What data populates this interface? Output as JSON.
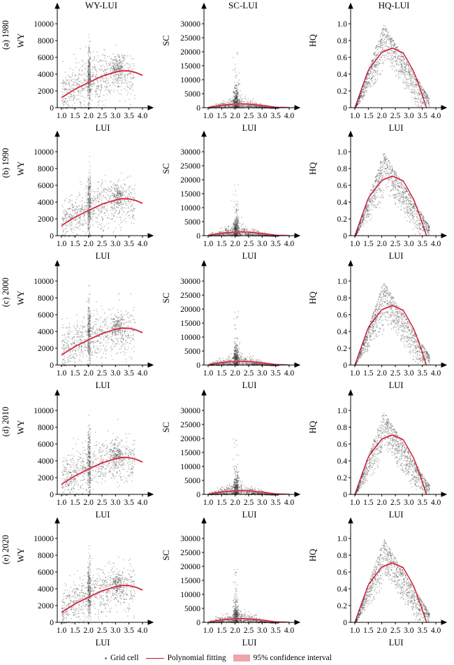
{
  "column_titles": [
    "WY-LUI",
    "SC-LUI",
    "HQ-LUI"
  ],
  "row_labels": [
    "(a) 1980",
    "(b) 1990",
    "(c) 2000",
    "(d) 2010",
    "(e) 2020"
  ],
  "legend": {
    "points": "Grid cell",
    "fit": "Polynomial fitting",
    "band": "95% confidence interval"
  },
  "colors": {
    "points": "#3a3a3a",
    "fit": "#c8102e",
    "band": "#f0a4ac",
    "axis": "#000000"
  },
  "chart_data": [
    {
      "type": "scatter",
      "panel": "WY-LUI",
      "xlabel": "LUI",
      "ylabel": "WY",
      "xlim": [
        1.0,
        4.0
      ],
      "ylim": [
        0,
        10000
      ],
      "xticks": [
        "1.0",
        "1.5",
        "2.0",
        "2.5",
        "3.0",
        "3.5",
        "4.0"
      ],
      "yticks": [
        "0",
        "2000",
        "4000",
        "6000",
        "8000",
        "10000"
      ],
      "fit": {
        "x": [
          1.0,
          1.5,
          2.0,
          2.5,
          3.0,
          3.25,
          3.5,
          3.75,
          4.0
        ],
        "y": [
          1200,
          2200,
          3000,
          3750,
          4250,
          4400,
          4380,
          4200,
          3850
        ]
      }
    },
    {
      "type": "scatter",
      "panel": "SC-LUI",
      "xlabel": "LUI",
      "ylabel": "SC",
      "xlim": [
        1.0,
        4.0
      ],
      "ylim": [
        0,
        30000
      ],
      "xticks": [
        "1.0",
        "1.5",
        "2.0",
        "2.5",
        "3.0",
        "3.5",
        "4.0"
      ],
      "yticks": [
        "0",
        "5000",
        "10000",
        "15000",
        "20000",
        "25000",
        "30000"
      ],
      "fit": {
        "x": [
          1.0,
          1.5,
          2.0,
          2.25,
          2.5,
          3.0,
          3.5,
          4.0
        ],
        "y": [
          0,
          900,
          1300,
          1350,
          1250,
          800,
          150,
          0
        ]
      }
    },
    {
      "type": "scatter",
      "panel": "HQ-LUI",
      "xlabel": "LUI",
      "ylabel": "HQ",
      "xlim": [
        1.0,
        4.0
      ],
      "ylim": [
        0,
        1.0
      ],
      "xticks": [
        "1.0",
        "1.5",
        "2.0",
        "2.5",
        "3.0",
        "3.5",
        "4.0"
      ],
      "yticks": [
        "0",
        "0.2",
        "0.4",
        "0.6",
        "0.8",
        "1.0"
      ],
      "fit": {
        "x": [
          1.0,
          1.5,
          2.0,
          2.4,
          2.8,
          3.2,
          3.5,
          3.65
        ],
        "y": [
          0.0,
          0.45,
          0.66,
          0.71,
          0.65,
          0.42,
          0.15,
          0.0
        ]
      }
    }
  ]
}
